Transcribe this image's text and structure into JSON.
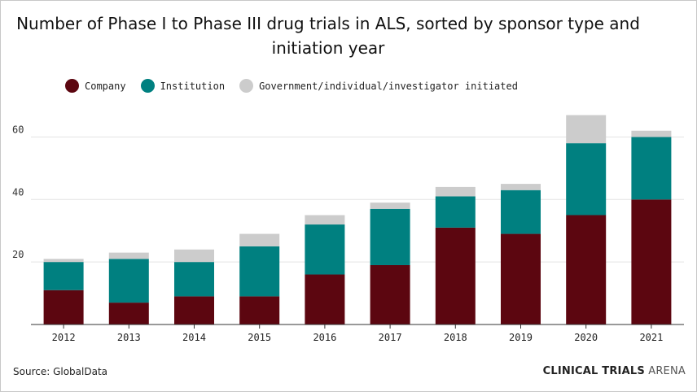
{
  "chart_data": {
    "type": "bar",
    "stacked": true,
    "title": "Number of Phase I to Phase III drug trials in ALS, sorted by sponsor type and initiation year",
    "categories": [
      "2012",
      "2013",
      "2014",
      "2015",
      "2016",
      "2017",
      "2018",
      "2019",
      "2020",
      "2021"
    ],
    "series": [
      {
        "name": "Company",
        "color": "#5c0610",
        "values": [
          11,
          7,
          9,
          9,
          16,
          19,
          31,
          29,
          35,
          40
        ]
      },
      {
        "name": "Institution",
        "color": "#008080",
        "values": [
          9,
          14,
          11,
          16,
          16,
          18,
          10,
          14,
          23,
          20
        ]
      },
      {
        "name": "Government/individual/investigator initiated",
        "color": "#cccccc",
        "values": [
          1,
          2,
          4,
          4,
          3,
          2,
          3,
          2,
          9,
          2
        ]
      }
    ],
    "ylim": [
      0,
      70
    ],
    "yticks": [
      "20",
      "40",
      "60"
    ],
    "grid": true,
    "legend": "top-left",
    "xlabel": "",
    "ylabel": ""
  },
  "footer": {
    "source": "Source: GlobalData",
    "brand_bold": "CLINICAL TRIALS",
    "brand_light": "ARENA"
  }
}
